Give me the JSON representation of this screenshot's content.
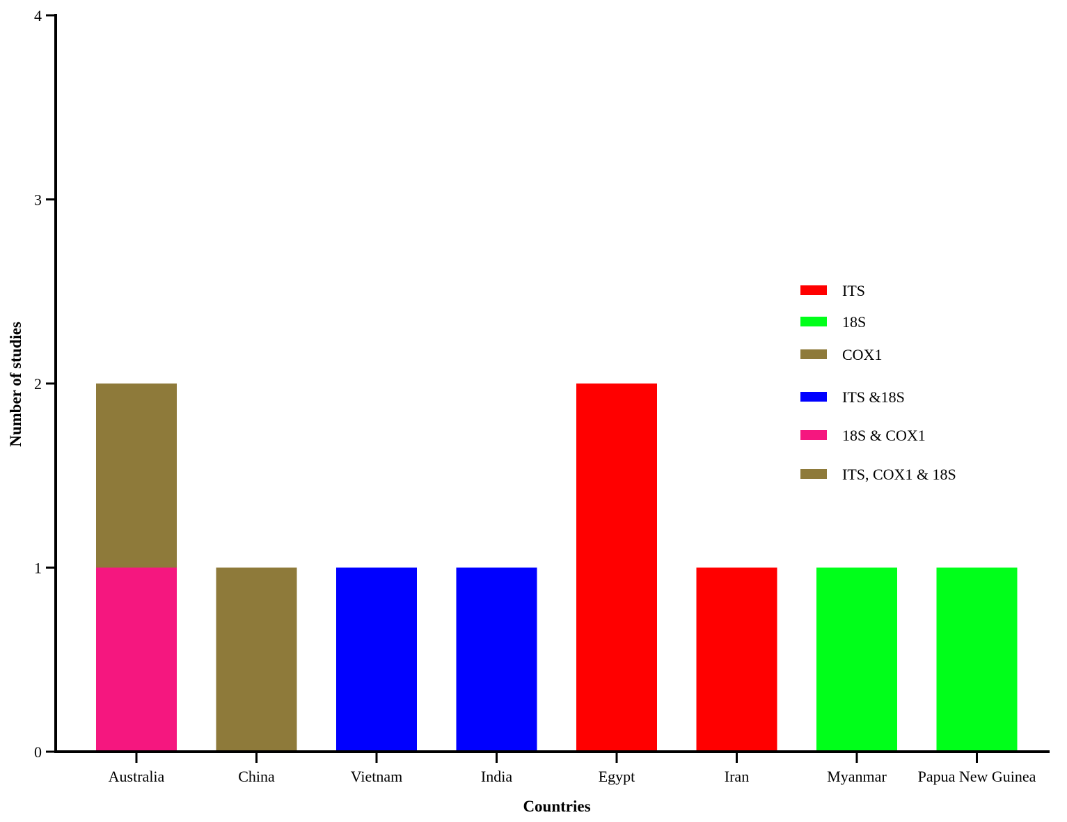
{
  "chart_data": {
    "type": "bar",
    "stacked": true,
    "xlabel": "Countries",
    "ylabel": "Number of studies",
    "ylim": [
      0,
      4
    ],
    "yticks": [
      0,
      1,
      2,
      3,
      4
    ],
    "legend_position": "right",
    "categories": [
      "Australia",
      "China",
      "Vietnam",
      "India",
      "Egypt",
      "Iran",
      "Myanmar",
      "Papua New Guinea"
    ],
    "series": [
      {
        "name": "ITS",
        "color": "#ff0000",
        "values": [
          0,
          0,
          0,
          0,
          2,
          1,
          0,
          0
        ]
      },
      {
        "name": "18S",
        "color": "#00ff1a",
        "values": [
          0,
          0,
          0,
          0,
          0,
          0,
          1,
          1
        ]
      },
      {
        "name": "COX1",
        "color": "#8e7a3a",
        "values": [
          1,
          1,
          0,
          0,
          0,
          0,
          0,
          0
        ]
      },
      {
        "name": "ITS &18S",
        "color": "#0000ff",
        "values": [
          0,
          0,
          1,
          1,
          0,
          0,
          0,
          0
        ]
      },
      {
        "name": "18S & COX1",
        "color": "#f5177f",
        "values": [
          1,
          0,
          0,
          0,
          0,
          0,
          0,
          0
        ]
      },
      {
        "name": "ITS, COX1 & 18S",
        "color": "#8e7a3a",
        "values": [
          0,
          0,
          0,
          0,
          0,
          0,
          0,
          0
        ]
      }
    ],
    "stack_order": [
      4,
      0,
      1,
      2,
      3,
      5
    ]
  }
}
